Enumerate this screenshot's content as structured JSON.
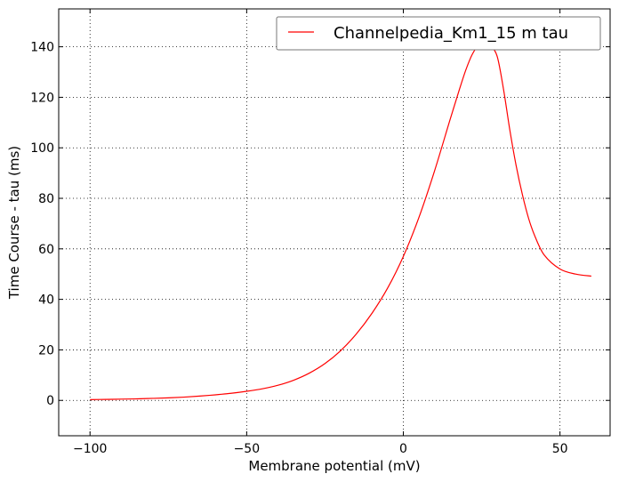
{
  "chart_data": {
    "type": "line",
    "title": "",
    "xlabel": "Membrane potential (mV)",
    "ylabel": "Time Course - tau (ms)",
    "xlim": [
      -110,
      66
    ],
    "ylim": [
      -14,
      155
    ],
    "xticks": [
      -100,
      -50,
      0,
      50
    ],
    "xtick_labels": [
      "−100",
      "−50",
      "0",
      "50"
    ],
    "yticks": [
      0,
      20,
      40,
      60,
      80,
      100,
      120,
      140
    ],
    "ytick_labels": [
      "0",
      "20",
      "40",
      "60",
      "80",
      "100",
      "120",
      "140"
    ],
    "grid": true,
    "legend_position": "top-right",
    "series": [
      {
        "name": "Channelpedia_Km1_15 m tau",
        "color": "#ff0000",
        "x": [
          -100,
          -95,
          -90,
          -85,
          -80,
          -75,
          -70,
          -65,
          -60,
          -55,
          -50,
          -45,
          -40,
          -35,
          -30,
          -25,
          -20,
          -15,
          -10,
          -5,
          0,
          5,
          10,
          15,
          18,
          20,
          22,
          24,
          26,
          28,
          30,
          32,
          34,
          36,
          38,
          40,
          42,
          45,
          50,
          55,
          60
        ],
        "y": [
          0.3,
          0.4,
          0.5,
          0.6,
          0.8,
          1.0,
          1.3,
          1.7,
          2.2,
          2.8,
          3.6,
          4.6,
          6.0,
          8.0,
          10.8,
          14.6,
          19.7,
          26.3,
          34.5,
          44.5,
          57.0,
          72.5,
          91.0,
          111.5,
          123.5,
          131.0,
          137.0,
          140.5,
          141.0,
          140.0,
          136.0,
          123.0,
          107.0,
          93.0,
          81.5,
          72.0,
          65.0,
          57.5,
          52.0,
          50.0,
          49.2
        ]
      }
    ]
  }
}
